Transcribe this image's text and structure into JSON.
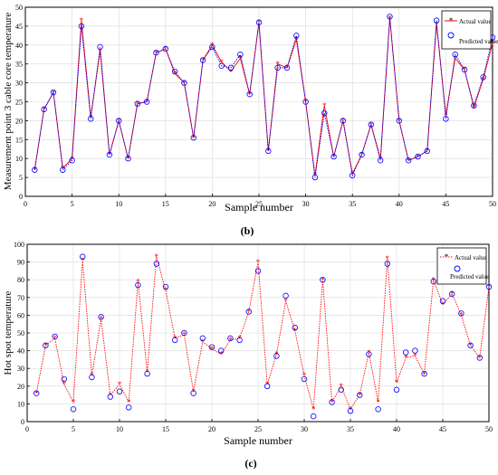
{
  "panels": [
    {
      "caption": "(b)",
      "legend": {
        "actual": "Actual value",
        "predicted": "Predicted value"
      }
    },
    {
      "caption": "(c)",
      "legend": {
        "actual": "Actual value",
        "predicted": "Predicted value"
      }
    }
  ],
  "colors": {
    "actual": "#ff0000",
    "predicted": "#0000ff",
    "axis": "#000000",
    "grid": "#d9d9d9"
  },
  "chart_data": [
    {
      "type": "line",
      "title": "",
      "xlabel": "Sample number",
      "ylabel": "Measurement point 3 cable core temperature",
      "xlim": [
        0,
        50
      ],
      "ylim": [
        0,
        50
      ],
      "xticks": [
        0,
        5,
        10,
        15,
        20,
        25,
        30,
        35,
        40,
        45,
        50
      ],
      "yticks": [
        0,
        5,
        10,
        15,
        20,
        25,
        30,
        35,
        40,
        45,
        50
      ],
      "grid": true,
      "legend_position": "top-right",
      "x": [
        1,
        2,
        3,
        4,
        5,
        6,
        7,
        8,
        9,
        10,
        11,
        12,
        13,
        14,
        15,
        16,
        17,
        18,
        19,
        20,
        21,
        22,
        23,
        24,
        25,
        26,
        27,
        28,
        29,
        30,
        31,
        32,
        33,
        34,
        35,
        36,
        37,
        38,
        39,
        40,
        41,
        42,
        43,
        44,
        45,
        46,
        47,
        48,
        49,
        50
      ],
      "series": [
        {
          "name": "Actual value",
          "marker": "star",
          "linestyle": "solid",
          "values": [
            7,
            23,
            27.5,
            7.5,
            10,
            46.5,
            21,
            38.5,
            11,
            20,
            10,
            24.5,
            25,
            38,
            39,
            32.5,
            30,
            15.5,
            36,
            40,
            35.5,
            33,
            36.5,
            27,
            46,
            12,
            35,
            34,
            41.5,
            25,
            5.5,
            24,
            10.5,
            20,
            6,
            11,
            19,
            10,
            47,
            20,
            9.5,
            10.5,
            12,
            45.5,
            21.5,
            36.5,
            33.5,
            23.5,
            31,
            40.5
          ]
        },
        {
          "name": "Predicted value",
          "marker": "circle",
          "linestyle": "dotted",
          "values": [
            7,
            23,
            27.5,
            7,
            9.5,
            45,
            20.5,
            39.5,
            11,
            20,
            10,
            24.5,
            25,
            38,
            39,
            33,
            30,
            15.5,
            36,
            39.5,
            34.5,
            34,
            37.5,
            27,
            46,
            12,
            34,
            34,
            42.5,
            25,
            5,
            22,
            10.5,
            20,
            5.5,
            11,
            19,
            9.5,
            47.5,
            20,
            9.5,
            10.5,
            12,
            46.5,
            20.5,
            37.5,
            33.5,
            24,
            31.5,
            42
          ]
        }
      ]
    },
    {
      "type": "line",
      "title": "",
      "xlabel": "Sample number",
      "ylabel": "Hot spot temperature",
      "xlim": [
        0,
        50
      ],
      "ylim": [
        0,
        100
      ],
      "xticks": [
        0,
        5,
        10,
        15,
        20,
        25,
        30,
        35,
        40,
        45,
        50
      ],
      "yticks": [
        0,
        10,
        20,
        30,
        40,
        50,
        60,
        70,
        80,
        90,
        100
      ],
      "grid": true,
      "legend_position": "top-right",
      "x": [
        1,
        2,
        3,
        4,
        5,
        6,
        7,
        8,
        9,
        10,
        11,
        12,
        13,
        14,
        15,
        16,
        17,
        18,
        19,
        20,
        21,
        22,
        23,
        24,
        25,
        26,
        27,
        28,
        29,
        30,
        31,
        32,
        33,
        34,
        35,
        36,
        37,
        38,
        39,
        40,
        41,
        42,
        43,
        44,
        45,
        46,
        47,
        48,
        49,
        50
      ],
      "series": [
        {
          "name": "Actual value",
          "marker": "star",
          "linestyle": "dotted",
          "values": [
            16,
            43,
            47,
            21,
            11,
            91,
            26,
            58,
            15,
            21,
            11,
            79,
            28,
            93,
            74,
            47,
            49,
            17,
            45,
            41,
            38,
            46,
            47,
            62,
            90,
            21,
            38,
            68,
            51,
            26,
            7,
            80,
            11,
            20,
            7,
            15,
            39,
            11,
            92,
            22,
            36,
            37,
            27,
            80,
            66,
            72,
            60,
            43,
            36,
            76
          ]
        },
        {
          "name": "Predicted value",
          "marker": "circle",
          "linestyle": "none",
          "values": [
            16,
            43,
            48,
            24,
            7,
            93,
            25,
            59,
            14,
            17,
            8,
            77,
            27,
            89,
            76,
            46,
            50,
            16,
            47,
            42,
            40,
            47,
            46,
            62,
            85,
            20,
            37,
            71,
            53,
            24,
            3,
            80,
            11,
            18,
            6,
            15,
            38,
            7,
            89,
            18,
            39,
            40,
            27,
            79,
            68,
            72,
            61,
            43,
            36,
            76
          ]
        }
      ]
    }
  ]
}
